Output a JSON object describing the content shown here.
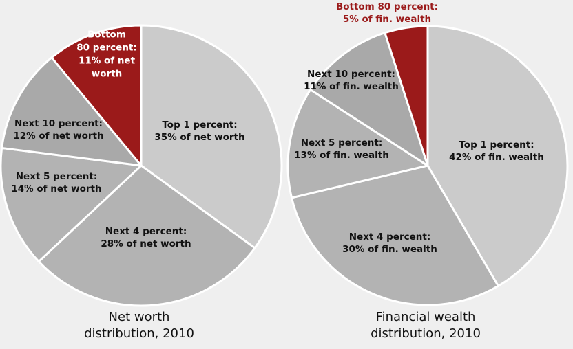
{
  "colors": {
    "background": "#efefef",
    "slice_light": "#cbcbcb",
    "slice_mid": "#b3b3b3",
    "slice_dark": "#a9a9a9",
    "highlight": "#9b1a1a",
    "highlight_text": "#9b1a1a",
    "separator": "#ffffff"
  },
  "chart_data": [
    {
      "type": "pie",
      "title_lines": [
        "Net worth",
        "distribution, 2010"
      ],
      "unit": "% of net worth",
      "slices": [
        {
          "label_lines": [
            "Top 1 percent:",
            "35% of net worth"
          ],
          "group": "Top 1 percent",
          "value": 35,
          "color": "#cbcbcb"
        },
        {
          "label_lines": [
            "Next 4 percent:",
            "28% of net worth"
          ],
          "group": "Next 4 percent",
          "value": 28,
          "color": "#b3b3b3"
        },
        {
          "label_lines": [
            "Next 5 percent:",
            "14% of net worth"
          ],
          "group": "Next 5 percent",
          "value": 14,
          "color": "#b3b3b3"
        },
        {
          "label_lines": [
            "Next 10 percent:",
            "12% of net worth"
          ],
          "group": "Next 10 percent",
          "value": 12,
          "color": "#a9a9a9"
        },
        {
          "label_lines": [
            "Bottom",
            "80 percent:",
            "11% of net",
            "worth"
          ],
          "group": "Bottom 80 percent",
          "value": 11,
          "color": "#9b1a1a"
        }
      ]
    },
    {
      "type": "pie",
      "title_lines": [
        "Financial wealth",
        "distribution, 2010"
      ],
      "unit": "% of fin. wealth",
      "slices": [
        {
          "label_lines": [
            "Top 1 percent:",
            "42% of fin. wealth"
          ],
          "group": "Top 1 percent",
          "value": 42,
          "color": "#cbcbcb"
        },
        {
          "label_lines": [
            "Next 4 percent:",
            "30% of fin. wealth"
          ],
          "group": "Next 4 percent",
          "value": 30,
          "color": "#b3b3b3"
        },
        {
          "label_lines": [
            "Next 5 percent:",
            "13% of fin. wealth"
          ],
          "group": "Next 5 percent",
          "value": 13,
          "color": "#b3b3b3"
        },
        {
          "label_lines": [
            "Next 10 percent:",
            "11% of fin. wealth"
          ],
          "group": "Next 10 percent",
          "value": 11,
          "color": "#a9a9a9"
        },
        {
          "label_lines": [
            "Bottom 80 percent:",
            "5% of fin. wealth"
          ],
          "group": "Bottom 80 percent",
          "value": 5,
          "color": "#9b1a1a"
        }
      ]
    }
  ]
}
